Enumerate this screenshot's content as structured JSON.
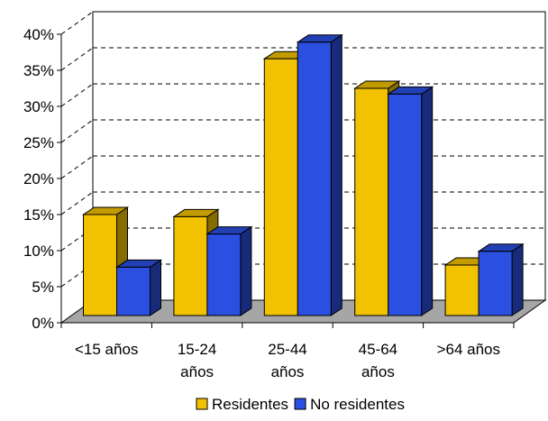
{
  "chart_data": {
    "type": "bar",
    "style": "3d-clustered-column",
    "categories": [
      [
        "<15 años"
      ],
      [
        "15-24",
        "años"
      ],
      [
        "25-44",
        "años"
      ],
      [
        "45-64",
        "años"
      ],
      [
        ">64 años"
      ]
    ],
    "series": [
      {
        "name": "Residentes",
        "values": [
          14.0,
          13.7,
          35.6,
          31.5,
          7.0
        ],
        "color": "#F2C200"
      },
      {
        "name": "No residentes",
        "values": [
          6.7,
          11.3,
          37.9,
          30.7,
          8.9
        ],
        "color": "#2B4FE0"
      }
    ],
    "y_ticks": [
      "0%",
      "5%",
      "10%",
      "15%",
      "20%",
      "25%",
      "30%",
      "35%",
      "40%"
    ],
    "ylim": [
      0,
      40
    ],
    "grid": true,
    "legend_position": "bottom",
    "floor_color": "#A6A6A6"
  }
}
